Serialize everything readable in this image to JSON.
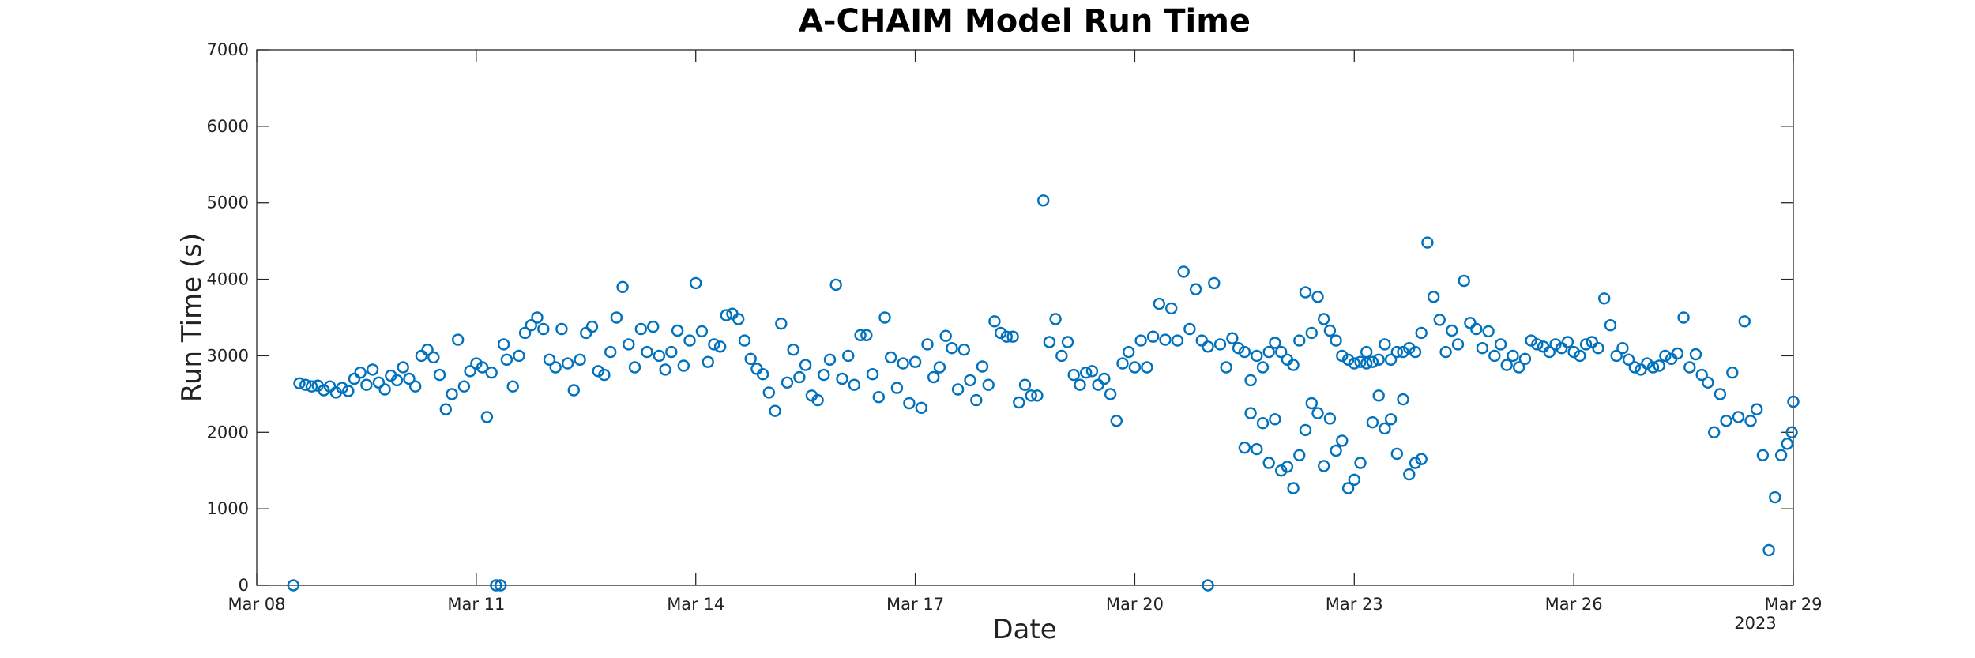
{
  "chart_data": {
    "type": "scatter",
    "title": "A-CHAIM Model Run Time",
    "xlabel": "Date",
    "ylabel": "Run Time (s)",
    "x_year_label": "2023",
    "xlim": [
      "2023-03-08T00:00",
      "2023-03-29T00:00"
    ],
    "ylim": [
      0,
      7000
    ],
    "xticks": [
      "Mar 08",
      "Mar 11",
      "Mar 14",
      "Mar 17",
      "Mar 20",
      "Mar 23",
      "Mar 26",
      "Mar 29"
    ],
    "yticks": [
      "0",
      "1000",
      "2000",
      "3000",
      "4000",
      "5000",
      "6000",
      "7000"
    ],
    "grid": false,
    "legend": "none",
    "marker": "open-circle",
    "color": "#0072BD",
    "points": [
      [
        "2023-03-08T12:00",
        0
      ],
      [
        "2023-03-08T14:00",
        2640
      ],
      [
        "2023-03-08T16:00",
        2620
      ],
      [
        "2023-03-08T18:00",
        2600
      ],
      [
        "2023-03-08T20:00",
        2610
      ],
      [
        "2023-03-08T22:00",
        2550
      ],
      [
        "2023-03-09T00:00",
        2600
      ],
      [
        "2023-03-09T02:00",
        2520
      ],
      [
        "2023-03-09T04:00",
        2580
      ],
      [
        "2023-03-09T06:00",
        2540
      ],
      [
        "2023-03-09T08:00",
        2700
      ],
      [
        "2023-03-09T10:00",
        2780
      ],
      [
        "2023-03-09T12:00",
        2620
      ],
      [
        "2023-03-09T14:00",
        2820
      ],
      [
        "2023-03-09T16:00",
        2650
      ],
      [
        "2023-03-09T18:00",
        2560
      ],
      [
        "2023-03-09T20:00",
        2740
      ],
      [
        "2023-03-09T22:00",
        2680
      ],
      [
        "2023-03-10T00:00",
        2850
      ],
      [
        "2023-03-10T02:00",
        2700
      ],
      [
        "2023-03-10T04:00",
        2600
      ],
      [
        "2023-03-10T06:00",
        3000
      ],
      [
        "2023-03-10T08:00",
        3080
      ],
      [
        "2023-03-10T10:00",
        2980
      ],
      [
        "2023-03-10T12:00",
        2750
      ],
      [
        "2023-03-10T14:00",
        2300
      ],
      [
        "2023-03-10T16:00",
        2500
      ],
      [
        "2023-03-10T18:00",
        3210
      ],
      [
        "2023-03-10T20:00",
        2600
      ],
      [
        "2023-03-10T22:00",
        2800
      ],
      [
        "2023-03-11T00:00",
        2900
      ],
      [
        "2023-03-11T02:00",
        2850
      ],
      [
        "2023-03-11T03:30",
        2200
      ],
      [
        "2023-03-11T05:00",
        2780
      ],
      [
        "2023-03-11T06:30",
        0
      ],
      [
        "2023-03-11T08:00",
        0
      ],
      [
        "2023-03-11T09:00",
        3150
      ],
      [
        "2023-03-11T10:00",
        2950
      ],
      [
        "2023-03-11T12:00",
        2600
      ],
      [
        "2023-03-11T14:00",
        3000
      ],
      [
        "2023-03-11T16:00",
        3300
      ],
      [
        "2023-03-11T18:00",
        3400
      ],
      [
        "2023-03-11T20:00",
        3500
      ],
      [
        "2023-03-11T22:00",
        3350
      ],
      [
        "2023-03-12T00:00",
        2950
      ],
      [
        "2023-03-12T02:00",
        2850
      ],
      [
        "2023-03-12T04:00",
        3350
      ],
      [
        "2023-03-12T06:00",
        2900
      ],
      [
        "2023-03-12T08:00",
        2550
      ],
      [
        "2023-03-12T10:00",
        2950
      ],
      [
        "2023-03-12T12:00",
        3300
      ],
      [
        "2023-03-12T14:00",
        3380
      ],
      [
        "2023-03-12T16:00",
        2800
      ],
      [
        "2023-03-12T18:00",
        2750
      ],
      [
        "2023-03-12T20:00",
        3050
      ],
      [
        "2023-03-12T22:00",
        3500
      ],
      [
        "2023-03-13T00:00",
        3900
      ],
      [
        "2023-03-13T02:00",
        3150
      ],
      [
        "2023-03-13T04:00",
        2850
      ],
      [
        "2023-03-13T06:00",
        3350
      ],
      [
        "2023-03-13T08:00",
        3050
      ],
      [
        "2023-03-13T10:00",
        3380
      ],
      [
        "2023-03-13T12:00",
        3000
      ],
      [
        "2023-03-13T14:00",
        2820
      ],
      [
        "2023-03-13T16:00",
        3050
      ],
      [
        "2023-03-13T18:00",
        3330
      ],
      [
        "2023-03-13T20:00",
        2870
      ],
      [
        "2023-03-13T22:00",
        3200
      ],
      [
        "2023-03-14T00:00",
        3950
      ],
      [
        "2023-03-14T02:00",
        3320
      ],
      [
        "2023-03-14T04:00",
        2920
      ],
      [
        "2023-03-14T06:00",
        3150
      ],
      [
        "2023-03-14T08:00",
        3120
      ],
      [
        "2023-03-14T10:00",
        3530
      ],
      [
        "2023-03-14T12:00",
        3550
      ],
      [
        "2023-03-14T14:00",
        3480
      ],
      [
        "2023-03-14T16:00",
        3200
      ],
      [
        "2023-03-14T18:00",
        2960
      ],
      [
        "2023-03-14T20:00",
        2830
      ],
      [
        "2023-03-14T22:00",
        2760
      ],
      [
        "2023-03-15T00:00",
        2520
      ],
      [
        "2023-03-15T02:00",
        2280
      ],
      [
        "2023-03-15T04:00",
        3420
      ],
      [
        "2023-03-15T06:00",
        2650
      ],
      [
        "2023-03-15T08:00",
        3080
      ],
      [
        "2023-03-15T10:00",
        2720
      ],
      [
        "2023-03-15T12:00",
        2880
      ],
      [
        "2023-03-15T14:00",
        2480
      ],
      [
        "2023-03-15T16:00",
        2420
      ],
      [
        "2023-03-15T18:00",
        2750
      ],
      [
        "2023-03-15T20:00",
        2950
      ],
      [
        "2023-03-15T22:00",
        3930
      ],
      [
        "2023-03-16T00:00",
        2700
      ],
      [
        "2023-03-16T02:00",
        3000
      ],
      [
        "2023-03-16T04:00",
        2620
      ],
      [
        "2023-03-16T06:00",
        3270
      ],
      [
        "2023-03-16T08:00",
        3270
      ],
      [
        "2023-03-16T10:00",
        2760
      ],
      [
        "2023-03-16T12:00",
        2460
      ],
      [
        "2023-03-16T14:00",
        3500
      ],
      [
        "2023-03-16T16:00",
        2980
      ],
      [
        "2023-03-16T18:00",
        2580
      ],
      [
        "2023-03-16T20:00",
        2900
      ],
      [
        "2023-03-16T22:00",
        2380
      ],
      [
        "2023-03-17T00:00",
        2920
      ],
      [
        "2023-03-17T02:00",
        2320
      ],
      [
        "2023-03-17T04:00",
        3150
      ],
      [
        "2023-03-17T06:00",
        2720
      ],
      [
        "2023-03-17T08:00",
        2850
      ],
      [
        "2023-03-17T10:00",
        3260
      ],
      [
        "2023-03-17T12:00",
        3100
      ],
      [
        "2023-03-17T14:00",
        2560
      ],
      [
        "2023-03-17T16:00",
        3080
      ],
      [
        "2023-03-17T18:00",
        2680
      ],
      [
        "2023-03-17T20:00",
        2420
      ],
      [
        "2023-03-17T22:00",
        2860
      ],
      [
        "2023-03-18T00:00",
        2620
      ],
      [
        "2023-03-18T02:00",
        3450
      ],
      [
        "2023-03-18T04:00",
        3300
      ],
      [
        "2023-03-18T06:00",
        3250
      ],
      [
        "2023-03-18T08:00",
        3250
      ],
      [
        "2023-03-18T10:00",
        2390
      ],
      [
        "2023-03-18T12:00",
        2620
      ],
      [
        "2023-03-18T14:00",
        2480
      ],
      [
        "2023-03-18T16:00",
        2480
      ],
      [
        "2023-03-18T18:00",
        5030
      ],
      [
        "2023-03-18T20:00",
        3180
      ],
      [
        "2023-03-18T22:00",
        3480
      ],
      [
        "2023-03-19T00:00",
        3000
      ],
      [
        "2023-03-19T02:00",
        3180
      ],
      [
        "2023-03-19T04:00",
        2750
      ],
      [
        "2023-03-19T06:00",
        2620
      ],
      [
        "2023-03-19T08:00",
        2780
      ],
      [
        "2023-03-19T10:00",
        2800
      ],
      [
        "2023-03-19T12:00",
        2620
      ],
      [
        "2023-03-19T14:00",
        2700
      ],
      [
        "2023-03-19T16:00",
        2500
      ],
      [
        "2023-03-19T18:00",
        2150
      ],
      [
        "2023-03-19T20:00",
        2900
      ],
      [
        "2023-03-19T22:00",
        3050
      ],
      [
        "2023-03-20T00:00",
        2850
      ],
      [
        "2023-03-20T02:00",
        3200
      ],
      [
        "2023-03-20T04:00",
        2850
      ],
      [
        "2023-03-20T06:00",
        3250
      ],
      [
        "2023-03-20T08:00",
        3680
      ],
      [
        "2023-03-20T10:00",
        3210
      ],
      [
        "2023-03-20T12:00",
        3620
      ],
      [
        "2023-03-20T14:00",
        3200
      ],
      [
        "2023-03-20T16:00",
        4100
      ],
      [
        "2023-03-20T18:00",
        3350
      ],
      [
        "2023-03-20T20:00",
        3870
      ],
      [
        "2023-03-20T22:00",
        3200
      ],
      [
        "2023-03-21T00:00",
        3120
      ],
      [
        "2023-03-21T02:00",
        3950
      ],
      [
        "2023-03-21T04:00",
        3150
      ],
      [
        "2023-03-21T06:00",
        2850
      ],
      [
        "2023-03-21T08:00",
        3230
      ],
      [
        "2023-03-21T10:00",
        3100
      ],
      [
        "2023-03-21T12:00",
        3050
      ],
      [
        "2023-03-21T14:00",
        2680
      ],
      [
        "2023-03-21T16:00",
        3000
      ],
      [
        "2023-03-21T18:00",
        2850
      ],
      [
        "2023-03-21T20:00",
        3050
      ],
      [
        "2023-03-21T22:00",
        3170
      ],
      [
        "2023-03-22T00:00",
        3050
      ],
      [
        "2023-03-22T02:00",
        2950
      ],
      [
        "2023-03-22T04:00",
        2880
      ],
      [
        "2023-03-22T06:00",
        3200
      ],
      [
        "2023-03-22T08:00",
        3830
      ],
      [
        "2023-03-22T10:00",
        3300
      ],
      [
        "2023-03-22T12:00",
        3770
      ],
      [
        "2023-03-22T14:00",
        3480
      ],
      [
        "2023-03-22T16:00",
        3330
      ],
      [
        "2023-03-22T18:00",
        3200
      ],
      [
        "2023-03-22T20:00",
        3000
      ],
      [
        "2023-03-22T22:00",
        2950
      ],
      [
        "2023-03-23T00:00",
        2900
      ],
      [
        "2023-03-23T02:00",
        2920
      ],
      [
        "2023-03-23T04:00",
        3050
      ],
      [
        "2023-03-23T06:00",
        2920
      ],
      [
        "2023-03-23T08:00",
        2950
      ],
      [
        "2023-03-23T10:00",
        3150
      ],
      [
        "2023-03-23T12:00",
        2950
      ],
      [
        "2023-03-23T14:00",
        3050
      ],
      [
        "2023-03-23T16:00",
        3050
      ],
      [
        "2023-03-23T18:00",
        3100
      ],
      [
        "2023-03-23T20:00",
        3050
      ],
      [
        "2023-03-23T22:00",
        3300
      ],
      [
        "2023-03-24T00:00",
        4480
      ],
      [
        "2023-03-24T02:00",
        3770
      ],
      [
        "2023-03-24T04:00",
        3470
      ],
      [
        "2023-03-24T06:00",
        3050
      ],
      [
        "2023-03-24T08:00",
        3330
      ],
      [
        "2023-03-24T10:00",
        3150
      ],
      [
        "2023-03-24T12:00",
        3980
      ],
      [
        "2023-03-24T14:00",
        3430
      ],
      [
        "2023-03-24T16:00",
        3350
      ],
      [
        "2023-03-24T18:00",
        3100
      ],
      [
        "2023-03-24T20:00",
        3320
      ],
      [
        "2023-03-24T22:00",
        3000
      ],
      [
        "2023-03-25T00:00",
        3150
      ],
      [
        "2023-03-25T02:00",
        2880
      ],
      [
        "2023-03-25T04:00",
        3000
      ],
      [
        "2023-03-25T06:00",
        2850
      ],
      [
        "2023-03-25T08:00",
        2960
      ],
      [
        "2023-03-25T10:00",
        3200
      ],
      [
        "2023-03-25T12:00",
        3150
      ],
      [
        "2023-03-25T14:00",
        3120
      ],
      [
        "2023-03-25T16:00",
        3050
      ],
      [
        "2023-03-25T18:00",
        3150
      ],
      [
        "2023-03-25T20:00",
        3100
      ],
      [
        "2023-03-25T22:00",
        3180
      ],
      [
        "2023-03-26T00:00",
        3050
      ],
      [
        "2023-03-26T02:00",
        3000
      ],
      [
        "2023-03-26T04:00",
        3150
      ],
      [
        "2023-03-26T06:00",
        3180
      ],
      [
        "2023-03-26T08:00",
        3100
      ],
      [
        "2023-03-26T10:00",
        3750
      ],
      [
        "2023-03-26T12:00",
        3400
      ],
      [
        "2023-03-26T14:00",
        3000
      ],
      [
        "2023-03-26T16:00",
        3100
      ],
      [
        "2023-03-26T18:00",
        2950
      ],
      [
        "2023-03-26T20:00",
        2850
      ],
      [
        "2023-03-26T22:00",
        2820
      ],
      [
        "2023-03-27T00:00",
        2900
      ],
      [
        "2023-03-27T02:00",
        2850
      ],
      [
        "2023-03-27T04:00",
        2870
      ],
      [
        "2023-03-27T06:00",
        3000
      ],
      [
        "2023-03-27T08:00",
        2960
      ],
      [
        "2023-03-27T10:00",
        3030
      ],
      [
        "2023-03-27T12:00",
        3500
      ],
      [
        "2023-03-27T14:00",
        2850
      ],
      [
        "2023-03-27T16:00",
        3020
      ],
      [
        "2023-03-27T18:00",
        2750
      ],
      [
        "2023-03-27T20:00",
        2650
      ],
      [
        "2023-03-27T22:00",
        2000
      ],
      [
        "2023-03-28T00:00",
        2500
      ],
      [
        "2023-03-28T02:00",
        2150
      ],
      [
        "2023-03-28T04:00",
        2780
      ],
      [
        "2023-03-28T06:00",
        2200
      ],
      [
        "2023-03-28T08:00",
        3450
      ],
      [
        "2023-03-28T10:00",
        2150
      ],
      [
        "2023-03-28T12:00",
        2300
      ],
      [
        "2023-03-28T14:00",
        1700
      ],
      [
        "2023-03-28T16:00",
        460
      ],
      [
        "2023-03-28T18:00",
        1150
      ],
      [
        "2023-03-28T20:00",
        1700
      ],
      [
        "2023-03-28T22:00",
        1850
      ],
      [
        "2023-03-28T23:30",
        2000
      ],
      [
        "2023-03-29T00:00",
        2400
      ]
    ],
    "points_more": [
      [
        "2023-03-21T00:00",
        0
      ],
      [
        "2023-03-21T12:00",
        1800
      ],
      [
        "2023-03-21T14:00",
        2250
      ],
      [
        "2023-03-21T16:00",
        1780
      ],
      [
        "2023-03-21T18:00",
        2120
      ],
      [
        "2023-03-21T20:00",
        1600
      ],
      [
        "2023-03-21T22:00",
        2170
      ],
      [
        "2023-03-22T00:00",
        1500
      ],
      [
        "2023-03-22T02:00",
        1550
      ],
      [
        "2023-03-22T04:00",
        1270
      ],
      [
        "2023-03-22T06:00",
        1700
      ],
      [
        "2023-03-22T08:00",
        2030
      ],
      [
        "2023-03-22T10:00",
        2380
      ],
      [
        "2023-03-22T12:00",
        2250
      ],
      [
        "2023-03-22T14:00",
        1560
      ],
      [
        "2023-03-22T16:00",
        2180
      ],
      [
        "2023-03-22T18:00",
        1760
      ],
      [
        "2023-03-22T20:00",
        1890
      ],
      [
        "2023-03-22T22:00",
        1270
      ],
      [
        "2023-03-23T00:00",
        1380
      ],
      [
        "2023-03-23T02:00",
        1600
      ],
      [
        "2023-03-23T04:00",
        2900
      ],
      [
        "2023-03-23T06:00",
        2130
      ],
      [
        "2023-03-23T08:00",
        2480
      ],
      [
        "2023-03-23T10:00",
        2050
      ],
      [
        "2023-03-23T12:00",
        2170
      ],
      [
        "2023-03-23T14:00",
        1720
      ],
      [
        "2023-03-23T16:00",
        2430
      ],
      [
        "2023-03-23T18:00",
        1450
      ],
      [
        "2023-03-23T20:00",
        1600
      ],
      [
        "2023-03-23T22:00",
        1650
      ]
    ]
  }
}
